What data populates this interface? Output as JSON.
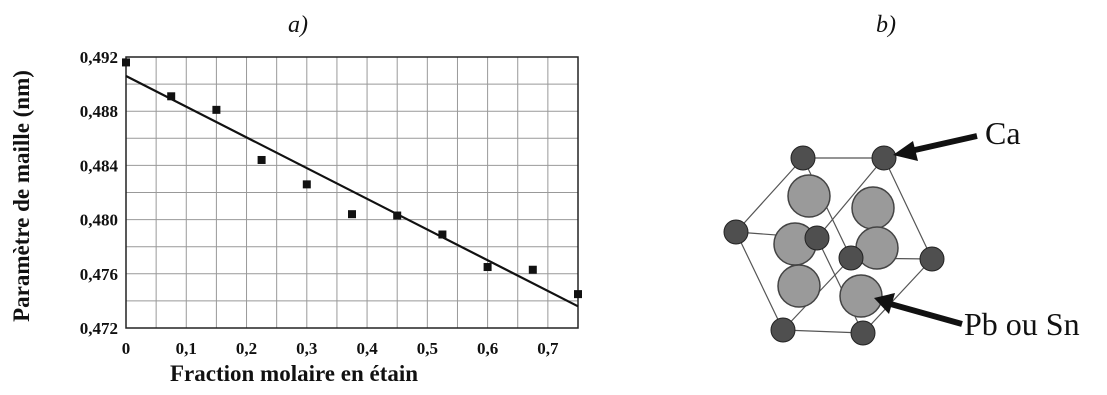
{
  "panels": {
    "a": "a)",
    "b": "b)"
  },
  "chart_data": {
    "type": "scatter",
    "title": "",
    "xlabel": "Fraction molaire en étain",
    "ylabel": "Paramètre de maille (nm)",
    "xlim": [
      0,
      0.75
    ],
    "ylim": [
      0.472,
      0.492
    ],
    "xticks": [
      "0",
      "0,1",
      "0,2",
      "0,3",
      "0,4",
      "0,5",
      "0,6",
      "0,7"
    ],
    "yticks": [
      "0,472",
      "0,476",
      "0,480",
      "0,484",
      "0,488",
      "0,492"
    ],
    "x_grid_step": 0.05,
    "y_grid_step": 0.002,
    "grid": true,
    "x": [
      0,
      0.075,
      0.15,
      0.225,
      0.3,
      0.375,
      0.45,
      0.525,
      0.6,
      0.675,
      0.75
    ],
    "y": [
      0.4916,
      0.4891,
      0.4881,
      0.4844,
      0.4826,
      0.4804,
      0.4803,
      0.4789,
      0.4765,
      0.4763,
      0.4745
    ],
    "fit_line": {
      "x": [
        0,
        0.75
      ],
      "y": [
        0.4906,
        0.4736
      ]
    }
  },
  "crystal": {
    "labels": {
      "ca": "Ca",
      "pb": "Pb ou Sn"
    },
    "colors": {
      "small_atom": "#4f4f4f",
      "large_atom": "#9a9a9a",
      "edge": "#555555"
    }
  }
}
